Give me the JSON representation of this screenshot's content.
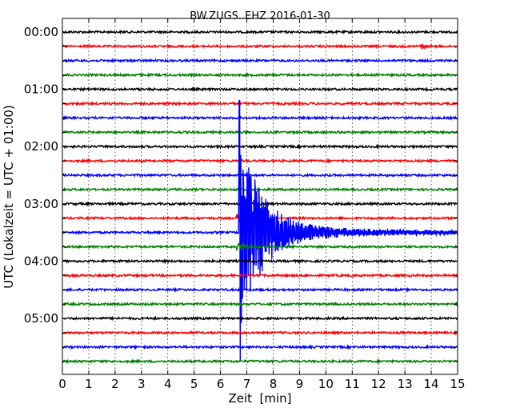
{
  "chart_data": {
    "type": "line",
    "subtype": "helicorder",
    "title": "BW.ZUGS..EHZ 2016-01-30",
    "xlabel": "Zeit  [min]",
    "ylabel": "UTC (Lokalzeit = UTC + 01:00)",
    "xlim": [
      0,
      15
    ],
    "x_ticks": [
      "0",
      "1",
      "2",
      "3",
      "4",
      "5",
      "6",
      "7",
      "8",
      "9",
      "10",
      "11",
      "12",
      "13",
      "14",
      "15"
    ],
    "y_tick_labels": [
      "00:00",
      "01:00",
      "02:00",
      "03:00",
      "04:00",
      "05:00"
    ],
    "trace_interval_min": 15,
    "grid": "vertical-dotted",
    "line_colors": [
      "#000000",
      "#ff0000",
      "#0000ff",
      "#008000"
    ],
    "trace_start_times": [
      "00:00",
      "00:15",
      "00:30",
      "00:45",
      "01:00",
      "01:15",
      "01:30",
      "01:45",
      "02:00",
      "02:15",
      "02:30",
      "02:45",
      "03:00",
      "03:15",
      "03:30",
      "03:45",
      "04:00",
      "04:15",
      "04:30",
      "04:45",
      "05:00",
      "05:15",
      "05:30",
      "05:45"
    ],
    "event": {
      "trace_index": 14,
      "trace_start": "03:30",
      "onset_min": 6.7,
      "peak_min": 6.75,
      "coda_end_min": 14.5
    }
  }
}
